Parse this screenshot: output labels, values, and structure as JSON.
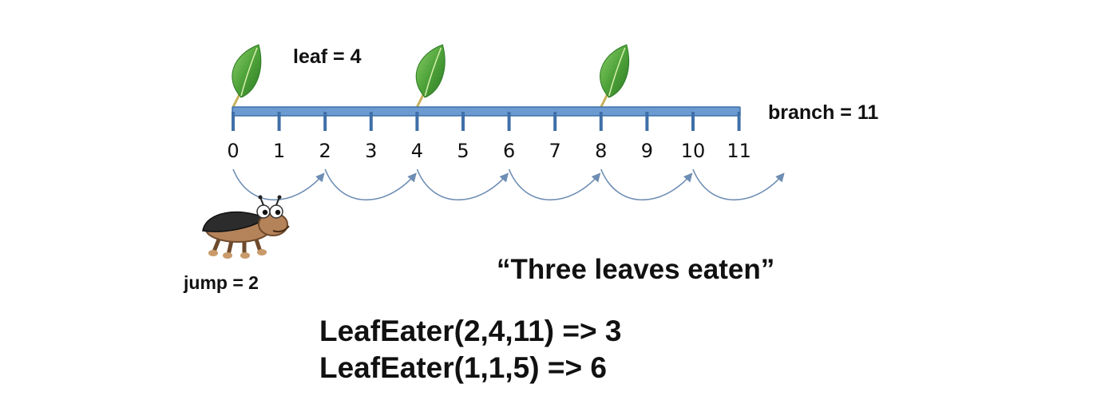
{
  "labels": {
    "leaf": "leaf = 4",
    "branch": "branch = 11",
    "jump": "jump = 2"
  },
  "axis": {
    "min": 0,
    "max": 11,
    "ticks": [
      "0",
      "1",
      "2",
      "3",
      "4",
      "5",
      "6",
      "7",
      "8",
      "9",
      "10",
      "11"
    ]
  },
  "leaves_at": [
    0,
    4,
    8
  ],
  "jump_arcs": [
    [
      0,
      2
    ],
    [
      2,
      4
    ],
    [
      4,
      6
    ],
    [
      6,
      8
    ],
    [
      8,
      10
    ],
    [
      10,
      12
    ]
  ],
  "quote": "“Three leaves eaten”",
  "examples": [
    "LeafEater(2,4,11) => 3",
    "LeafEater(1,1,5) => 6"
  ],
  "colors": {
    "branch": "#6b9bd1",
    "branch_stroke": "#3f6fa8",
    "leaf": "#4fa33a",
    "arc": "#6d8db3"
  },
  "icons": {
    "leaf": "leaf-icon",
    "bug": "beetle-icon"
  }
}
